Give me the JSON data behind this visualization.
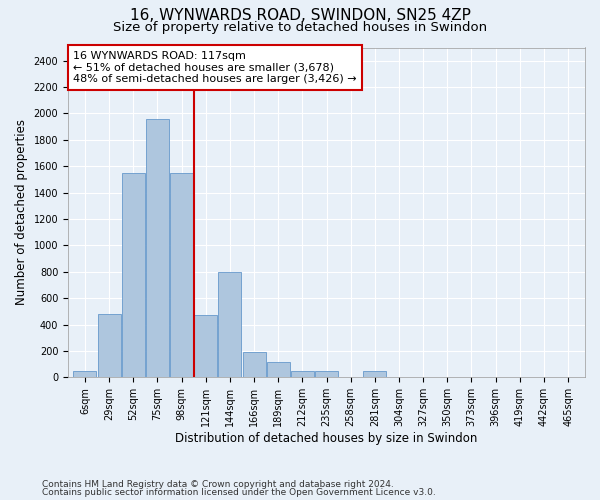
{
  "title_line1": "16, WYNWARDS ROAD, SWINDON, SN25 4ZP",
  "title_line2": "Size of property relative to detached houses in Swindon",
  "xlabel": "Distribution of detached houses by size in Swindon",
  "ylabel": "Number of detached properties",
  "footnote1": "Contains HM Land Registry data © Crown copyright and database right 2024.",
  "footnote2": "Contains public sector information licensed under the Open Government Licence v3.0.",
  "annotation_line1": "16 WYNWARDS ROAD: 117sqm",
  "annotation_line2": "← 51% of detached houses are smaller (3,678)",
  "annotation_line3": "48% of semi-detached houses are larger (3,426) →",
  "bar_color": "#aec6de",
  "bar_edge_color": "#6699cc",
  "vline_color": "#cc0000",
  "vline_x": 4.5,
  "categories": [
    "6sqm",
    "29sqm",
    "52sqm",
    "75sqm",
    "98sqm",
    "121sqm",
    "144sqm",
    "166sqm",
    "189sqm",
    "212sqm",
    "235sqm",
    "258sqm",
    "281sqm",
    "304sqm",
    "327sqm",
    "350sqm",
    "373sqm",
    "396sqm",
    "419sqm",
    "442sqm",
    "465sqm"
  ],
  "bar_values": [
    50,
    480,
    1550,
    1960,
    1550,
    470,
    800,
    190,
    120,
    50,
    50,
    0,
    50,
    0,
    0,
    0,
    0,
    0,
    0,
    0,
    0
  ],
  "ylim": [
    0,
    2500
  ],
  "yticks": [
    0,
    200,
    400,
    600,
    800,
    1000,
    1200,
    1400,
    1600,
    1800,
    2000,
    2200,
    2400
  ],
  "background_color": "#e8f0f8",
  "plot_bg_color": "#e8f0f8",
  "annotation_box_color": "#ffffff",
  "annotation_box_edge": "#cc0000",
  "grid_color": "#ffffff",
  "title_fontsize": 11,
  "subtitle_fontsize": 9.5,
  "axis_label_fontsize": 8.5,
  "tick_fontsize": 7,
  "annotation_fontsize": 8,
  "footnote_fontsize": 6.5
}
